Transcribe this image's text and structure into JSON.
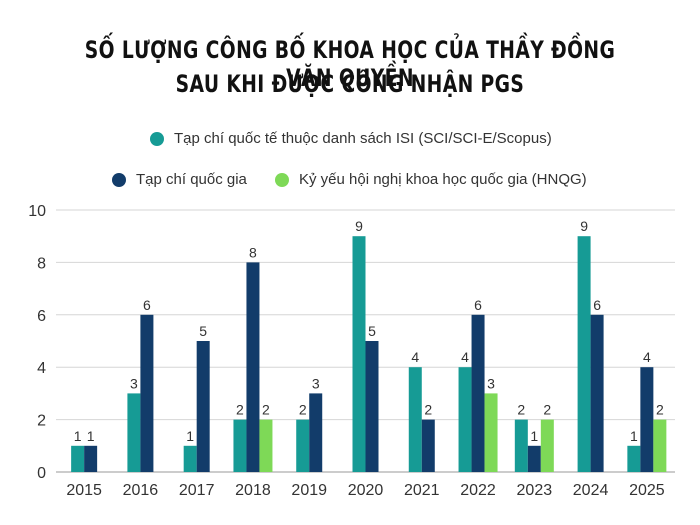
{
  "chart_data": {
    "type": "bar",
    "title": "SỐ LƯỢNG CÔNG BỐ KHOA HỌC CỦA THẦY ĐỒNG VĂN QUYỀN",
    "subtitle": "SAU KHI ĐƯỢC CÔNG NHẬN PGS",
    "categories": [
      "2015",
      "2016",
      "2017",
      "2018",
      "2019",
      "2020",
      "2021",
      "2022",
      "2023",
      "2024",
      "2025"
    ],
    "series": [
      {
        "name": "Tạp chí quốc tế thuộc danh sách ISI (SCI/SCI-E/Scopus)",
        "color": "#169b95",
        "values": [
          1,
          3,
          1,
          2,
          2,
          9,
          4,
          4,
          2,
          9,
          1
        ]
      },
      {
        "name": "Tạp chí quốc gia",
        "color": "#123c6a",
        "values": [
          1,
          6,
          5,
          8,
          3,
          5,
          2,
          6,
          1,
          6,
          4
        ]
      },
      {
        "name": "Kỷ yếu hội nghị khoa học quốc gia (HNQG)",
        "color": "#7ed957",
        "values": [
          0,
          0,
          0,
          2,
          0,
          0,
          0,
          3,
          2,
          0,
          2
        ]
      }
    ],
    "yticks": [
      0,
      2,
      4,
      6,
      8,
      10
    ],
    "ylim": [
      0,
      10
    ],
    "xlabel": "",
    "ylabel": "",
    "grid": true,
    "legend": "top"
  }
}
